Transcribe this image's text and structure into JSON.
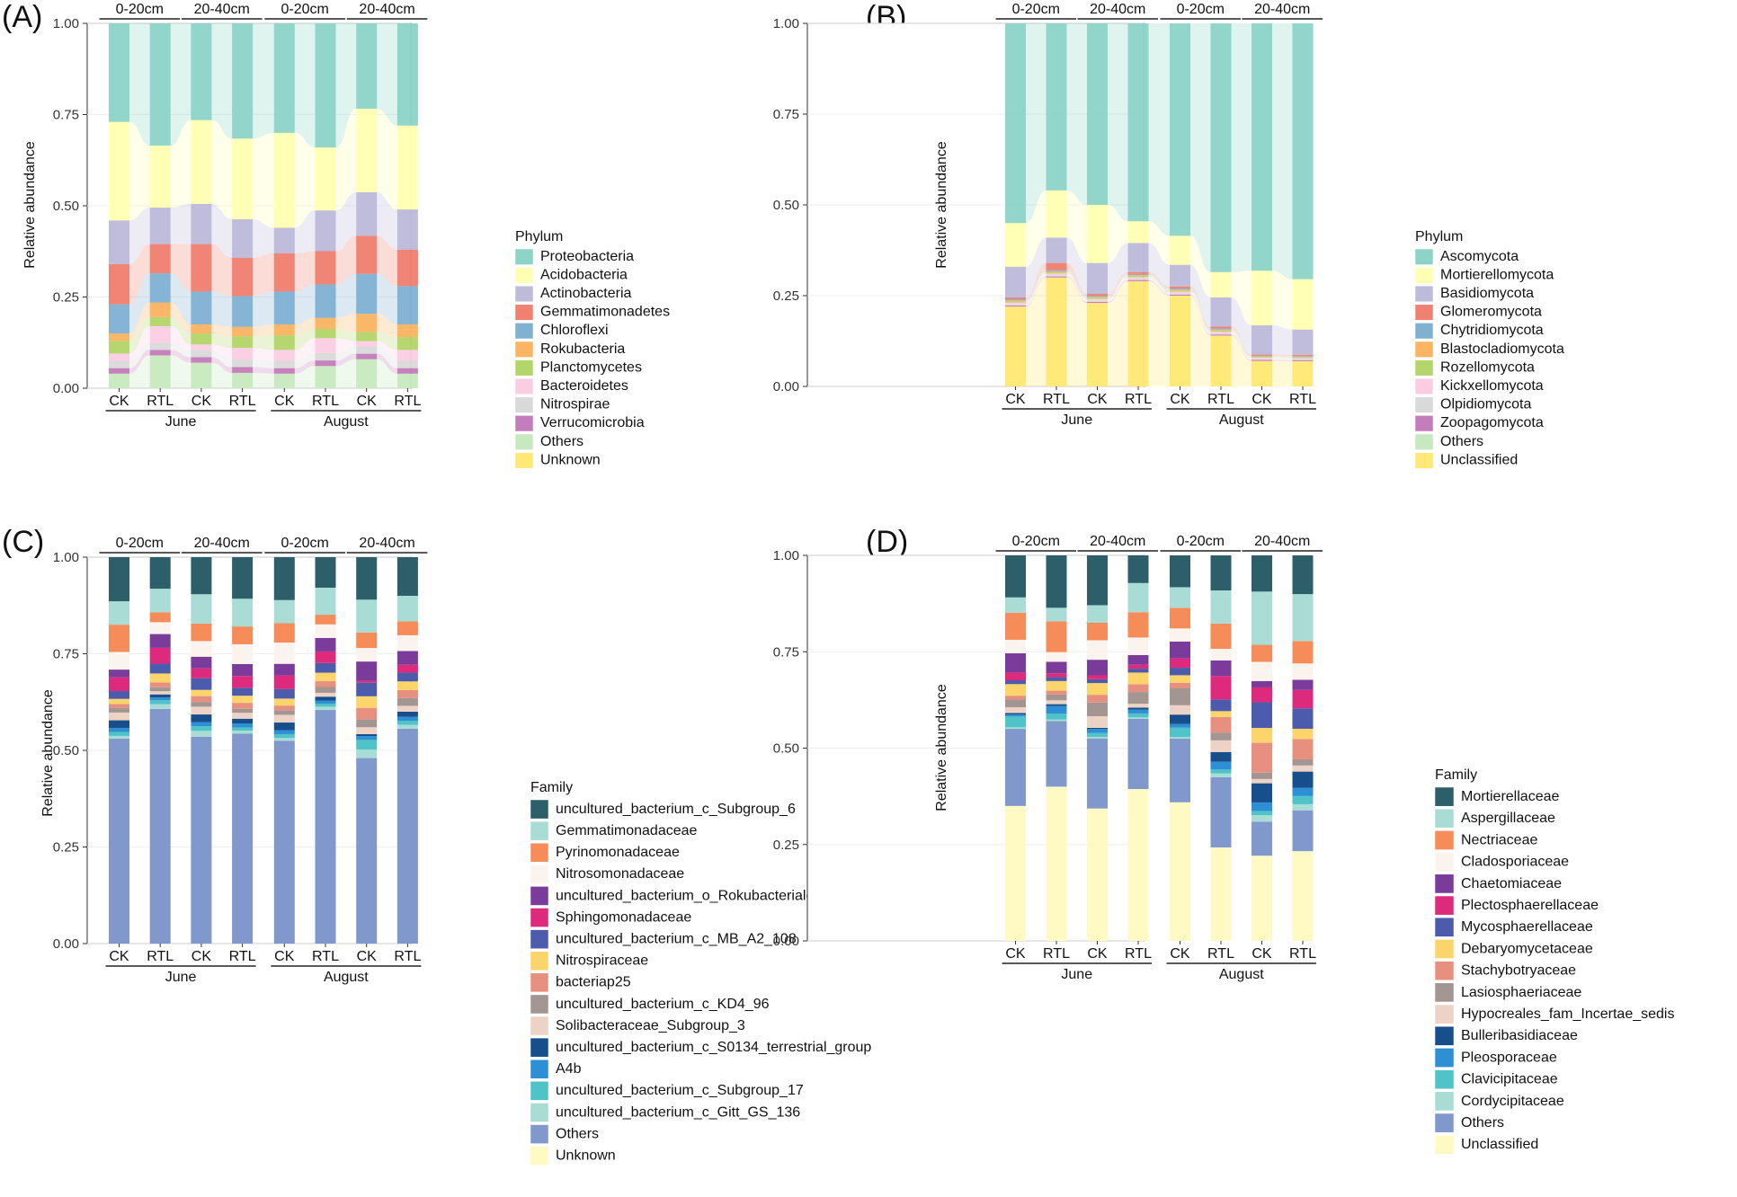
{
  "chart_data": [
    {
      "panel": "(A)",
      "type": "area",
      "ylabel": "Relative abundance",
      "ylim": [
        0,
        1
      ],
      "yticks": [
        "0.00",
        "0.25",
        "0.50",
        "0.75",
        "1.00"
      ],
      "categories": [
        "CK",
        "RTL",
        "CK",
        "RTL",
        "CK",
        "RTL",
        "CK",
        "RTL"
      ],
      "depth_labels": [
        "0-20cm",
        "20-40cm",
        "0-20cm",
        "20-40cm"
      ],
      "month_labels": [
        "June",
        "August"
      ],
      "legend_title": "Phylum",
      "series": [
        {
          "name": "Unknown",
          "color": "#ffe873",
          "values": [
            0.0,
            0.0,
            0.0,
            0.0,
            0.0,
            0.0,
            0.0,
            0.0
          ]
        },
        {
          "name": "Others",
          "color": "#c7e9c0",
          "values": [
            0.04,
            0.09,
            0.07,
            0.04,
            0.04,
            0.06,
            0.08,
            0.04
          ]
        },
        {
          "name": "Verrucomicrobia",
          "color": "#c47dbc",
          "values": [
            0.015,
            0.015,
            0.015,
            0.015,
            0.015,
            0.015,
            0.015,
            0.015
          ]
        },
        {
          "name": "Nitrospirae",
          "color": "#d9d9d9",
          "values": [
            0.02,
            0.02,
            0.02,
            0.02,
            0.02,
            0.02,
            0.02,
            0.02
          ]
        },
        {
          "name": "Bacteroidetes",
          "color": "#fbcde3",
          "values": [
            0.02,
            0.045,
            0.015,
            0.03,
            0.03,
            0.04,
            0.015,
            0.03
          ]
        },
        {
          "name": "Planctomycetes",
          "color": "#b3d56a",
          "values": [
            0.035,
            0.025,
            0.03,
            0.03,
            0.04,
            0.025,
            0.025,
            0.035
          ]
        },
        {
          "name": "Rokubacteria",
          "color": "#fbb462",
          "values": [
            0.02,
            0.04,
            0.025,
            0.025,
            0.03,
            0.03,
            0.05,
            0.035
          ]
        },
        {
          "name": "Chloroflexi",
          "color": "#80b1d3",
          "values": [
            0.08,
            0.08,
            0.09,
            0.08,
            0.09,
            0.09,
            0.11,
            0.105
          ]
        },
        {
          "name": "Gemmatimonadetes",
          "color": "#f08070",
          "values": [
            0.11,
            0.08,
            0.13,
            0.1,
            0.105,
            0.09,
            0.105,
            0.1
          ]
        },
        {
          "name": "Actinobacteria",
          "color": "#bebada",
          "values": [
            0.12,
            0.1,
            0.11,
            0.1,
            0.07,
            0.11,
            0.12,
            0.11
          ]
        },
        {
          "name": "Acidobacteria",
          "color": "#ffffb3",
          "values": [
            0.27,
            0.17,
            0.23,
            0.21,
            0.26,
            0.17,
            0.23,
            0.23
          ]
        },
        {
          "name": "Proteobacteria",
          "color": "#8dd3c7",
          "values": [
            0.27,
            0.335,
            0.265,
            0.3,
            0.3,
            0.335,
            0.235,
            0.28
          ]
        }
      ]
    },
    {
      "panel": "(B)",
      "type": "area",
      "ylabel": "Relative abundance",
      "ylim": [
        0,
        1
      ],
      "yticks": [
        "0.00",
        "0.25",
        "0.50",
        "0.75",
        "1.00"
      ],
      "categories": [
        "CK",
        "RTL",
        "CK",
        "RTL",
        "CK",
        "RTL",
        "CK",
        "RTL"
      ],
      "depth_labels": [
        "0-20cm",
        "20-40cm",
        "0-20cm",
        "20-40cm"
      ],
      "month_labels": [
        "June",
        "August"
      ],
      "legend_title": "Phylum",
      "series": [
        {
          "name": "Unclassified",
          "color": "#ffe873",
          "values": [
            0.22,
            0.3,
            0.23,
            0.29,
            0.25,
            0.14,
            0.07,
            0.07
          ]
        },
        {
          "name": "Others",
          "color": "#c7e9c0",
          "values": [
            0.0,
            0.0,
            0.0,
            0.0,
            0.0,
            0.0,
            0.0,
            0.0
          ]
        },
        {
          "name": "Zoopagomycota",
          "color": "#c47dbc",
          "values": [
            0.003,
            0.003,
            0.003,
            0.003,
            0.003,
            0.003,
            0.003,
            0.003
          ]
        },
        {
          "name": "Olpidiomycota",
          "color": "#d9d9d9",
          "values": [
            0.003,
            0.003,
            0.003,
            0.003,
            0.003,
            0.003,
            0.003,
            0.003
          ]
        },
        {
          "name": "Kickxellomycota",
          "color": "#fbcde3",
          "values": [
            0.005,
            0.005,
            0.005,
            0.005,
            0.005,
            0.005,
            0.003,
            0.003
          ]
        },
        {
          "name": "Rozellomycota",
          "color": "#b3d56a",
          "values": [
            0.003,
            0.003,
            0.003,
            0.003,
            0.003,
            0.003,
            0.002,
            0.002
          ]
        },
        {
          "name": "Blastocladiomycota",
          "color": "#fbb462",
          "values": [
            0.003,
            0.003,
            0.003,
            0.003,
            0.003,
            0.003,
            0.002,
            0.002
          ]
        },
        {
          "name": "Chytridiomycota",
          "color": "#80b1d3",
          "values": [
            0.003,
            0.003,
            0.003,
            0.003,
            0.003,
            0.003,
            0.002,
            0.002
          ]
        },
        {
          "name": "Glomeromycota",
          "color": "#f08070",
          "values": [
            0.005,
            0.02,
            0.005,
            0.005,
            0.005,
            0.005,
            0.003,
            0.003
          ]
        },
        {
          "name": "Basidiomycota",
          "color": "#bebada",
          "values": [
            0.085,
            0.07,
            0.085,
            0.08,
            0.06,
            0.08,
            0.08,
            0.07
          ]
        },
        {
          "name": "Mortierellomycota",
          "color": "#ffffb3",
          "values": [
            0.12,
            0.13,
            0.16,
            0.06,
            0.08,
            0.07,
            0.15,
            0.14
          ]
        },
        {
          "name": "Ascomycota",
          "color": "#8dd3c7",
          "values": [
            0.55,
            0.46,
            0.5,
            0.545,
            0.585,
            0.685,
            0.68,
            0.71
          ]
        }
      ]
    },
    {
      "panel": "(C)",
      "type": "bar",
      "ylabel": "Relative abundance",
      "ylim": [
        0,
        1
      ],
      "yticks": [
        "0.00",
        "0.25",
        "0.50",
        "0.75",
        "1.00"
      ],
      "categories": [
        "CK",
        "RTL",
        "CK",
        "RTL",
        "CK",
        "RTL",
        "CK",
        "RTL"
      ],
      "depth_labels": [
        "0-20cm",
        "20-40cm",
        "0-20cm",
        "20-40cm"
      ],
      "month_labels": [
        "June",
        "August"
      ],
      "legend_title": "Family",
      "series": [
        {
          "name": "Unknown",
          "color": "#fff9c4",
          "values": [
            0.0,
            0.0,
            0.0,
            0.0,
            0.0,
            0.0,
            0.0,
            0.0
          ]
        },
        {
          "name": "Others",
          "color": "#8098cc",
          "values": [
            0.525,
            0.595,
            0.53,
            0.53,
            0.525,
            0.605,
            0.48,
            0.545
          ]
        },
        {
          "name": "uncultured_bacterium_c_Gitt_GS_136",
          "color": "#a8dcd5",
          "values": [
            0.007,
            0.012,
            0.015,
            0.008,
            0.007,
            0.008,
            0.022,
            0.01
          ]
        },
        {
          "name": "uncultured_bacterium_c_Subgroup_17",
          "color": "#4fc3c7",
          "values": [
            0.01,
            0.01,
            0.012,
            0.008,
            0.01,
            0.008,
            0.025,
            0.01
          ]
        },
        {
          "name": "A4b",
          "color": "#2e8fd4",
          "values": [
            0.01,
            0.007,
            0.01,
            0.01,
            0.01,
            0.008,
            0.01,
            0.01
          ]
        },
        {
          "name": "uncultured_bacterium_c_S0134_terrestrial_group",
          "color": "#174f8c",
          "values": [
            0.02,
            0.008,
            0.02,
            0.012,
            0.02,
            0.01,
            0.005,
            0.013
          ]
        },
        {
          "name": "Solibacteraceae_Subgroup_3",
          "color": "#ecd3c6",
          "values": [
            0.02,
            0.008,
            0.02,
            0.015,
            0.02,
            0.01,
            0.018,
            0.015
          ]
        },
        {
          "name": "uncultured_bacterium_c_KD4_96",
          "color": "#a39591",
          "values": [
            0.012,
            0.01,
            0.012,
            0.01,
            0.012,
            0.015,
            0.02,
            0.02
          ]
        },
        {
          "name": "bacteriap25",
          "color": "#e8907f",
          "values": [
            0.01,
            0.012,
            0.015,
            0.015,
            0.012,
            0.015,
            0.03,
            0.02
          ]
        },
        {
          "name": "Nitrospiraceae",
          "color": "#fbd56b",
          "values": [
            0.013,
            0.023,
            0.016,
            0.018,
            0.018,
            0.022,
            0.03,
            0.022
          ]
        },
        {
          "name": "uncultured_bacterium_c_MB_A2_108",
          "color": "#4c5bab",
          "values": [
            0.02,
            0.025,
            0.03,
            0.02,
            0.025,
            0.025,
            0.035,
            0.022
          ]
        },
        {
          "name": "Sphingomonadaceae",
          "color": "#de2a7c",
          "values": [
            0.035,
            0.04,
            0.025,
            0.03,
            0.035,
            0.03,
            0.005,
            0.02
          ]
        },
        {
          "name": "uncultured_bacterium_o_Rokubacteriales",
          "color": "#7b3b9a",
          "values": [
            0.02,
            0.035,
            0.03,
            0.03,
            0.03,
            0.035,
            0.05,
            0.035
          ]
        },
        {
          "name": "Nitrosomonadaceae",
          "color": "#fbf4ee",
          "values": [
            0.045,
            0.03,
            0.04,
            0.05,
            0.055,
            0.035,
            0.035,
            0.04
          ]
        },
        {
          "name": "Pyrinomonadaceae",
          "color": "#f58c5a",
          "values": [
            0.07,
            0.025,
            0.045,
            0.045,
            0.05,
            0.025,
            0.04,
            0.035
          ]
        },
        {
          "name": "Gemmatimonadaceae",
          "color": "#a8dcd5",
          "values": [
            0.06,
            0.06,
            0.075,
            0.07,
            0.06,
            0.07,
            0.085,
            0.065
          ]
        },
        {
          "name": "uncultured_bacterium_c_Subgroup_6",
          "color": "#2c5f69",
          "values": [
            0.113,
            0.08,
            0.095,
            0.105,
            0.111,
            0.079,
            0.11,
            0.098
          ]
        }
      ]
    },
    {
      "panel": "(D)",
      "type": "bar",
      "ylabel": "Relative abundance",
      "ylim": [
        0,
        1
      ],
      "yticks": [
        "0.00",
        "0.25",
        "0.50",
        "0.75",
        "1.00"
      ],
      "categories": [
        "CK",
        "RTL",
        "CK",
        "RTL",
        "CK",
        "RTL",
        "CK",
        "RTL"
      ],
      "depth_labels": [
        "0-20cm",
        "20-40cm",
        "0-20cm",
        "20-40cm"
      ],
      "month_labels": [
        "June",
        "August"
      ],
      "legend_title": "Family",
      "series": [
        {
          "name": "Unclassified",
          "color": "#fff9c4",
          "values": [
            0.35,
            0.4,
            0.34,
            0.39,
            0.37,
            0.24,
            0.2,
            0.22
          ]
        },
        {
          "name": "Others",
          "color": "#8098cc",
          "values": [
            0.2,
            0.17,
            0.18,
            0.18,
            0.17,
            0.18,
            0.08,
            0.1
          ]
        },
        {
          "name": "Cordycipitaceae",
          "color": "#a8dcd5",
          "values": [
            0.004,
            0.004,
            0.004,
            0.004,
            0.004,
            0.01,
            0.015,
            0.015
          ]
        },
        {
          "name": "Clavicipitaceae",
          "color": "#4fc3c7",
          "values": [
            0.028,
            0.015,
            0.01,
            0.01,
            0.025,
            0.01,
            0.01,
            0.02
          ]
        },
        {
          "name": "Pleosporaceae",
          "color": "#2e8fd4",
          "values": [
            0.005,
            0.02,
            0.01,
            0.01,
            0.01,
            0.02,
            0.02,
            0.02
          ]
        },
        {
          "name": "Bulleribasidiaceae",
          "color": "#174f8c",
          "values": [
            0.004,
            0.005,
            0.003,
            0.005,
            0.025,
            0.025,
            0.045,
            0.04
          ]
        },
        {
          "name": "Hypocreales_fam_Incertae_sedis",
          "color": "#ecd3c6",
          "values": [
            0.015,
            0.01,
            0.03,
            0.01,
            0.025,
            0.03,
            0.01,
            0.015
          ]
        },
        {
          "name": "Lasiosphaeriaceae",
          "color": "#a39591",
          "values": [
            0.02,
            0.015,
            0.035,
            0.03,
            0.045,
            0.02,
            0.015,
            0.015
          ]
        },
        {
          "name": "Stachybotryaceae",
          "color": "#e8907f",
          "values": [
            0.01,
            0.01,
            0.02,
            0.02,
            0.015,
            0.04,
            0.07,
            0.05
          ]
        },
        {
          "name": "Debaryomycetaceae",
          "color": "#fbd56b",
          "values": [
            0.03,
            0.025,
            0.03,
            0.03,
            0.02,
            0.015,
            0.035,
            0.025
          ]
        },
        {
          "name": "Mycosphaerellaceae",
          "color": "#4c5bab",
          "values": [
            0.01,
            0.01,
            0.01,
            0.01,
            0.02,
            0.03,
            0.06,
            0.05
          ]
        },
        {
          "name": "Plectosphaerellaceae",
          "color": "#de2a7c",
          "values": [
            0.02,
            0.01,
            0.01,
            0.01,
            0.025,
            0.06,
            0.035,
            0.045
          ]
        },
        {
          "name": "Chaetomiaceae",
          "color": "#7b3b9a",
          "values": [
            0.05,
            0.03,
            0.04,
            0.025,
            0.045,
            0.04,
            0.015,
            0.025
          ]
        },
        {
          "name": "Cladosporiaceae",
          "color": "#fbf4ee",
          "values": [
            0.035,
            0.025,
            0.05,
            0.045,
            0.035,
            0.03,
            0.045,
            0.04
          ]
        },
        {
          "name": "Nectriaceae",
          "color": "#f58c5a",
          "values": [
            0.07,
            0.08,
            0.045,
            0.065,
            0.055,
            0.065,
            0.04,
            0.055
          ]
        },
        {
          "name": "Aspergillaceae",
          "color": "#a8dcd5",
          "values": [
            0.04,
            0.035,
            0.045,
            0.075,
            0.055,
            0.085,
            0.125,
            0.115
          ]
        },
        {
          "name": "Mortierellaceae",
          "color": "#2c5f69",
          "values": [
            0.109,
            0.136,
            0.128,
            0.071,
            0.085,
            0.09,
            0.085,
            0.095
          ]
        }
      ]
    }
  ]
}
